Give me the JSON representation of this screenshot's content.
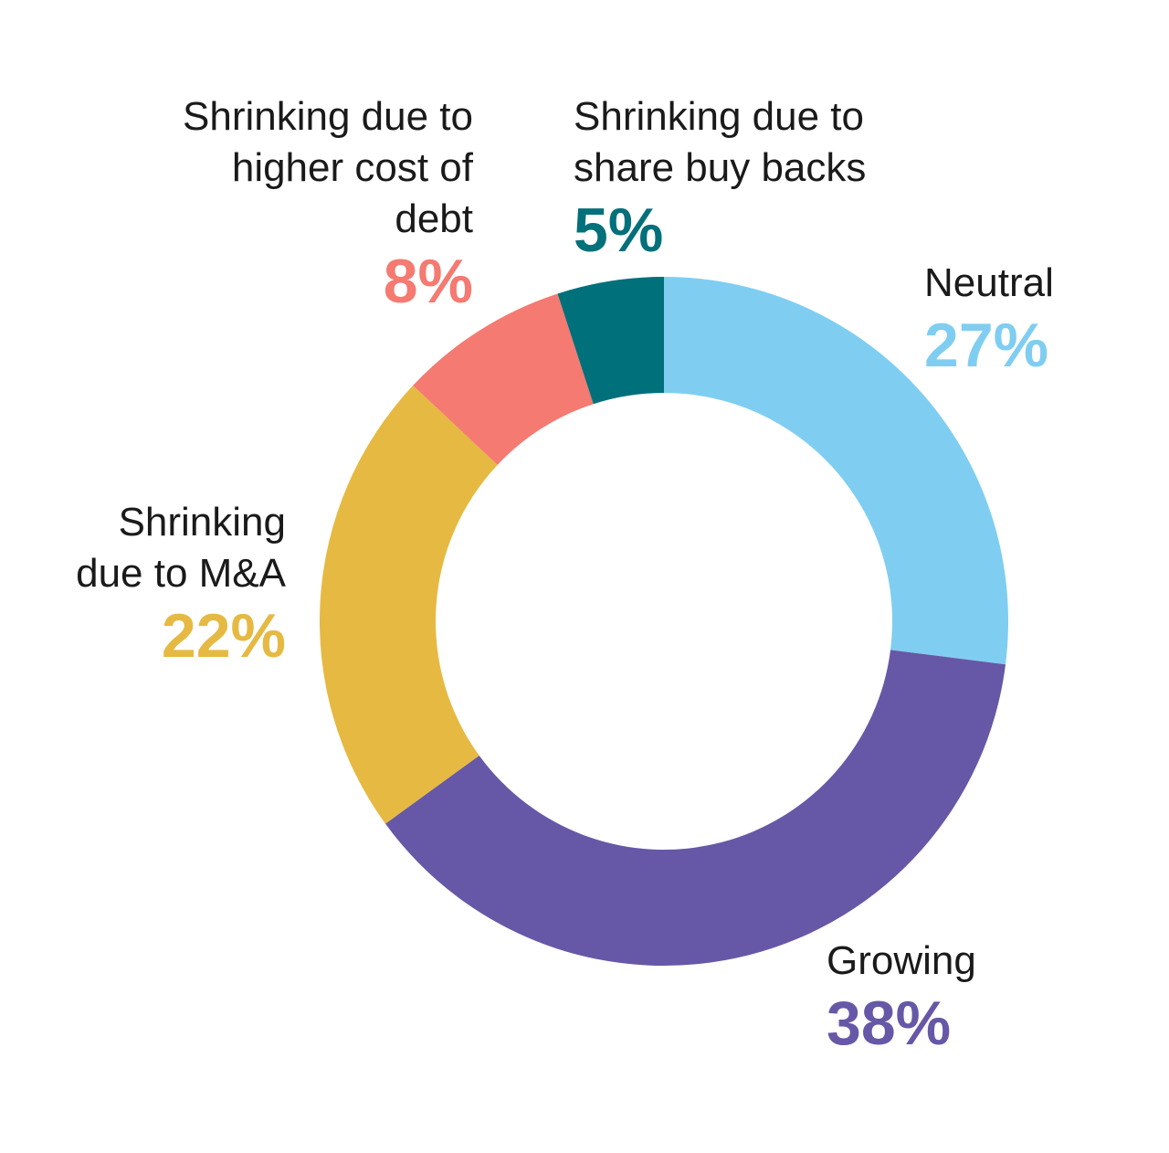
{
  "chart_data": {
    "type": "donut",
    "categories": [
      "Neutral",
      "Growing",
      "Shrinking due to M&A",
      "Shrinking due to higher cost of debt",
      "Shrinking due to share buy backs"
    ],
    "values": [
      27,
      38,
      22,
      8,
      5
    ],
    "value_labels": [
      "27%",
      "38%",
      "22%",
      "8%",
      "5%"
    ],
    "colors": [
      "#7fcef1",
      "#6658a6",
      "#e6b942",
      "#f47a72",
      "#00707a"
    ]
  }
}
